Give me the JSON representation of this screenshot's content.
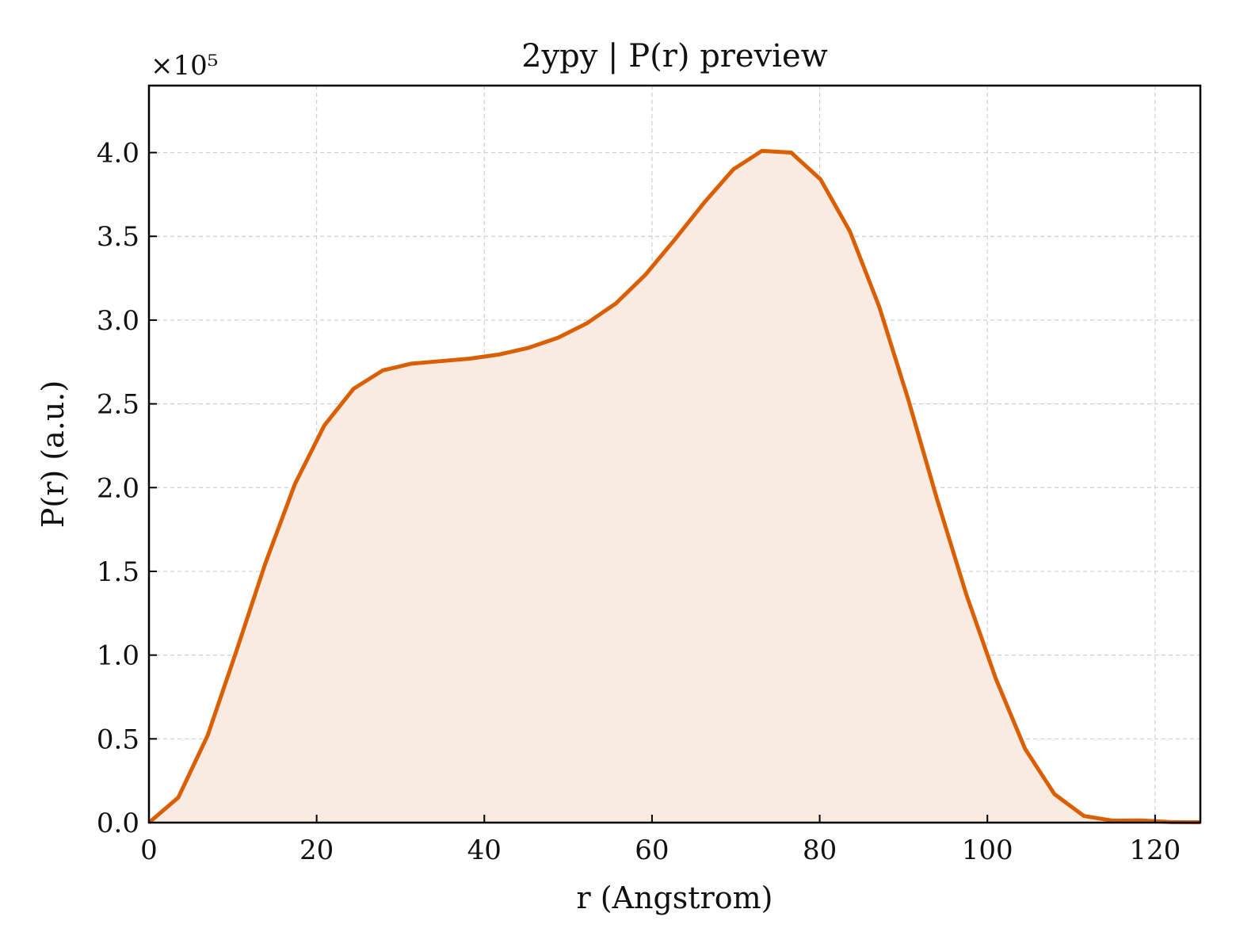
{
  "chart_data": {
    "type": "area",
    "title": "2ypy | P(r) preview",
    "xlabel": "r (Angstrom)",
    "ylabel": "P(r) (a.u.)",
    "y_multiplier_label": "×10⁵",
    "xlim": [
      0,
      125.4
    ],
    "ylim": [
      0,
      4.4
    ],
    "x_ticks": [
      0,
      20,
      40,
      60,
      80,
      100,
      120
    ],
    "y_ticks": [
      0.0,
      0.5,
      1.0,
      1.5,
      2.0,
      2.5,
      3.0,
      3.5,
      4.0
    ],
    "x_tick_labels": [
      "0",
      "20",
      "40",
      "60",
      "80",
      "100",
      "120"
    ],
    "y_tick_labels": [
      "0.0",
      "0.5",
      "1.0",
      "1.5",
      "2.0",
      "2.5",
      "3.0",
      "3.5",
      "4.0"
    ],
    "grid": true,
    "line_color": "#d95f02",
    "fill_color": "#f9ebe1",
    "series": [
      {
        "x": [
          0,
          3.5,
          7,
          10.4,
          13.9,
          17.4,
          20.9,
          24.4,
          27.9,
          31.3,
          34.8,
          38.3,
          41.8,
          45.3,
          48.8,
          52.2,
          55.7,
          59.2,
          62.7,
          66.2,
          69.7,
          73.1,
          76.6,
          80.1,
          83.6,
          87.1,
          90.6,
          94,
          97.5,
          101,
          104.5,
          108,
          111.5,
          114.9,
          118.4,
          121.9,
          125.4
        ],
        "y": [
          0,
          0.15,
          0.52,
          1.02,
          1.55,
          2.02,
          2.37,
          2.59,
          2.7,
          2.74,
          2.755,
          2.77,
          2.795,
          2.835,
          2.895,
          2.98,
          3.1,
          3.27,
          3.48,
          3.7,
          3.9,
          4.01,
          4.0,
          3.84,
          3.53,
          3.08,
          2.52,
          1.93,
          1.36,
          0.86,
          0.44,
          0.17,
          0.04,
          0.012,
          0.013,
          0.003,
          0.002
        ]
      }
    ]
  }
}
